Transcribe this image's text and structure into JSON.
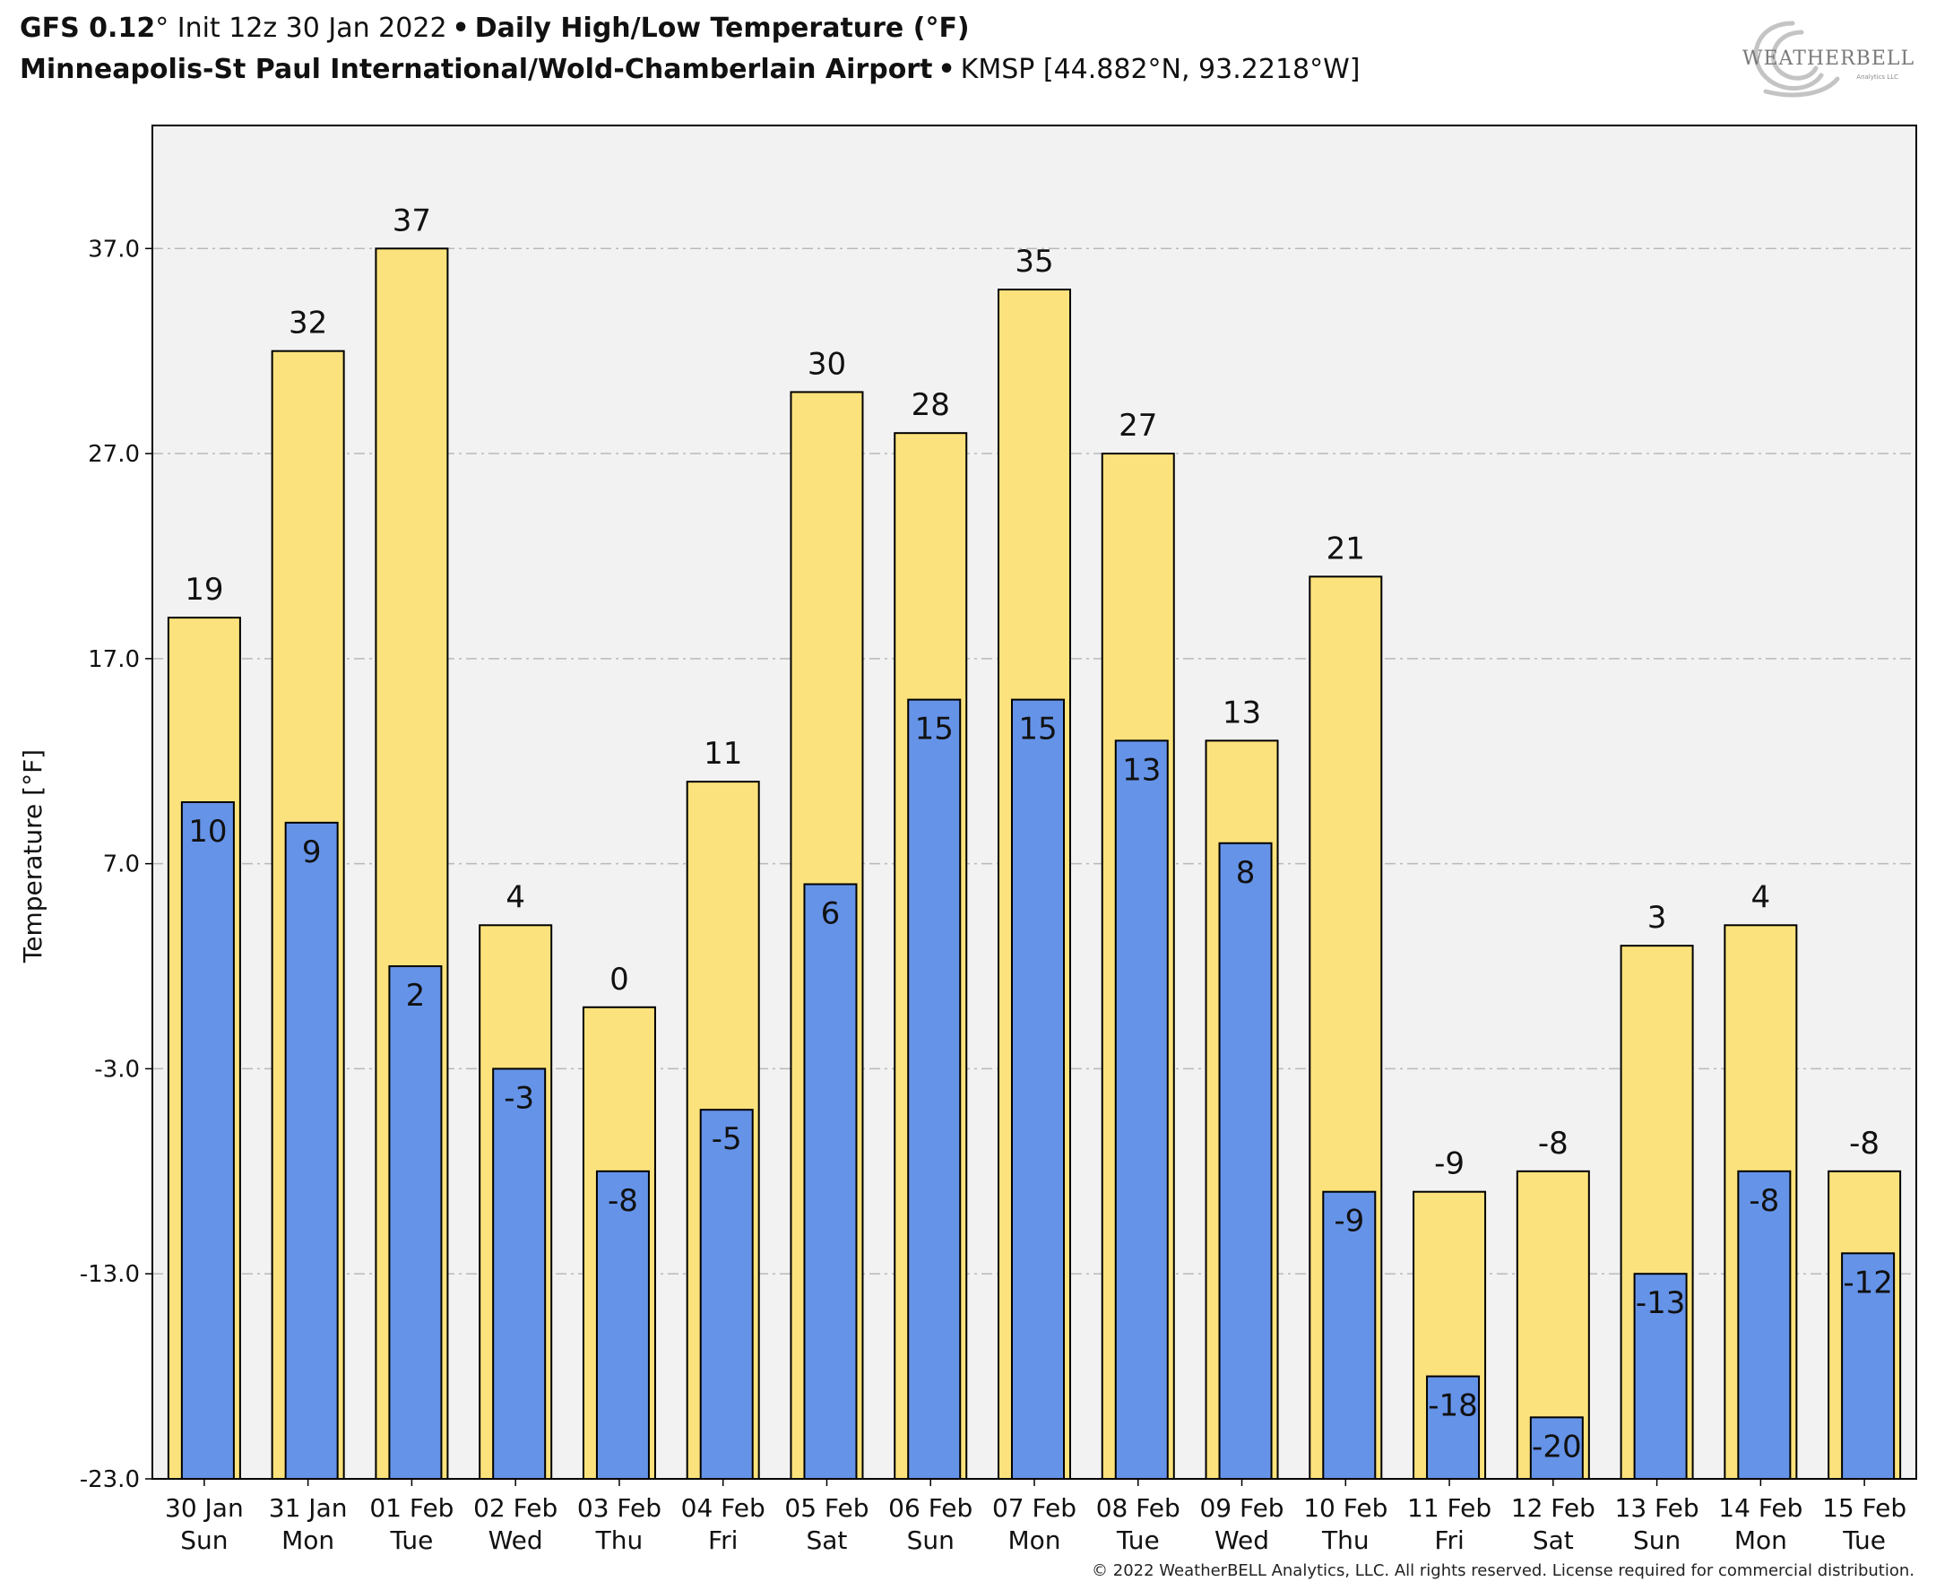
{
  "header": {
    "line1": {
      "model": "GFS 0.12",
      "degree_mark": "°",
      "init_text": "Init 12z 30 Jan 2022",
      "separator": "•",
      "product": "Daily High/Low Temperature (°F)"
    },
    "line2": {
      "station_name": "Minneapolis-St Paul International/Wold-Chamberlain Airport",
      "separator": "•",
      "station_info": "KMSP [44.882°N, 93.2218°W]"
    }
  },
  "logo": {
    "text_main": "WEATHERBELL",
    "text_sub": "Analytics LLC"
  },
  "copyright": "© 2022 WeatherBELL Analytics, LLC. All rights reserved. License required for commercial distribution.",
  "colors": {
    "high_fill": "#fbe27c",
    "low_fill": "#6593e8",
    "plot_bg": "#f2f2f2",
    "grid": "#b9b9b9"
  },
  "chart_data": {
    "type": "bar",
    "title": "Daily High/Low Temperature (°F)",
    "ylabel": "Temperature [°F]",
    "xlabel": "",
    "ylim": [
      -23,
      43
    ],
    "yticks": [
      37,
      27,
      17,
      7,
      -3,
      -13,
      -23
    ],
    "ytick_labels": [
      "37.0",
      "27.0",
      "17.0",
      "7.0",
      "-3.0",
      "-13.0",
      "-23.0"
    ],
    "grid": true,
    "categories": [
      {
        "date": "30 Jan",
        "day": "Sun"
      },
      {
        "date": "31 Jan",
        "day": "Mon"
      },
      {
        "date": "01 Feb",
        "day": "Tue"
      },
      {
        "date": "02 Feb",
        "day": "Wed"
      },
      {
        "date": "03 Feb",
        "day": "Thu"
      },
      {
        "date": "04 Feb",
        "day": "Fri"
      },
      {
        "date": "05 Feb",
        "day": "Sat"
      },
      {
        "date": "06 Feb",
        "day": "Sun"
      },
      {
        "date": "07 Feb",
        "day": "Mon"
      },
      {
        "date": "08 Feb",
        "day": "Tue"
      },
      {
        "date": "09 Feb",
        "day": "Wed"
      },
      {
        "date": "10 Feb",
        "day": "Thu"
      },
      {
        "date": "11 Feb",
        "day": "Fri"
      },
      {
        "date": "12 Feb",
        "day": "Sat"
      },
      {
        "date": "13 Feb",
        "day": "Sun"
      },
      {
        "date": "14 Feb",
        "day": "Mon"
      },
      {
        "date": "15 Feb",
        "day": "Tue"
      }
    ],
    "series": [
      {
        "values": [
          19,
          32,
          37,
          4,
          0,
          11,
          30,
          28,
          35,
          27,
          13,
          21,
          -9,
          -8,
          3,
          4,
          -8
        ],
        "color": "#fbe27c"
      },
      {
        "values": [
          10,
          9,
          2,
          -3,
          -8,
          -5,
          6,
          15,
          15,
          13,
          8,
          -9,
          -18,
          -20,
          -13,
          -8,
          -12
        ],
        "color": "#6593e8"
      }
    ]
  }
}
